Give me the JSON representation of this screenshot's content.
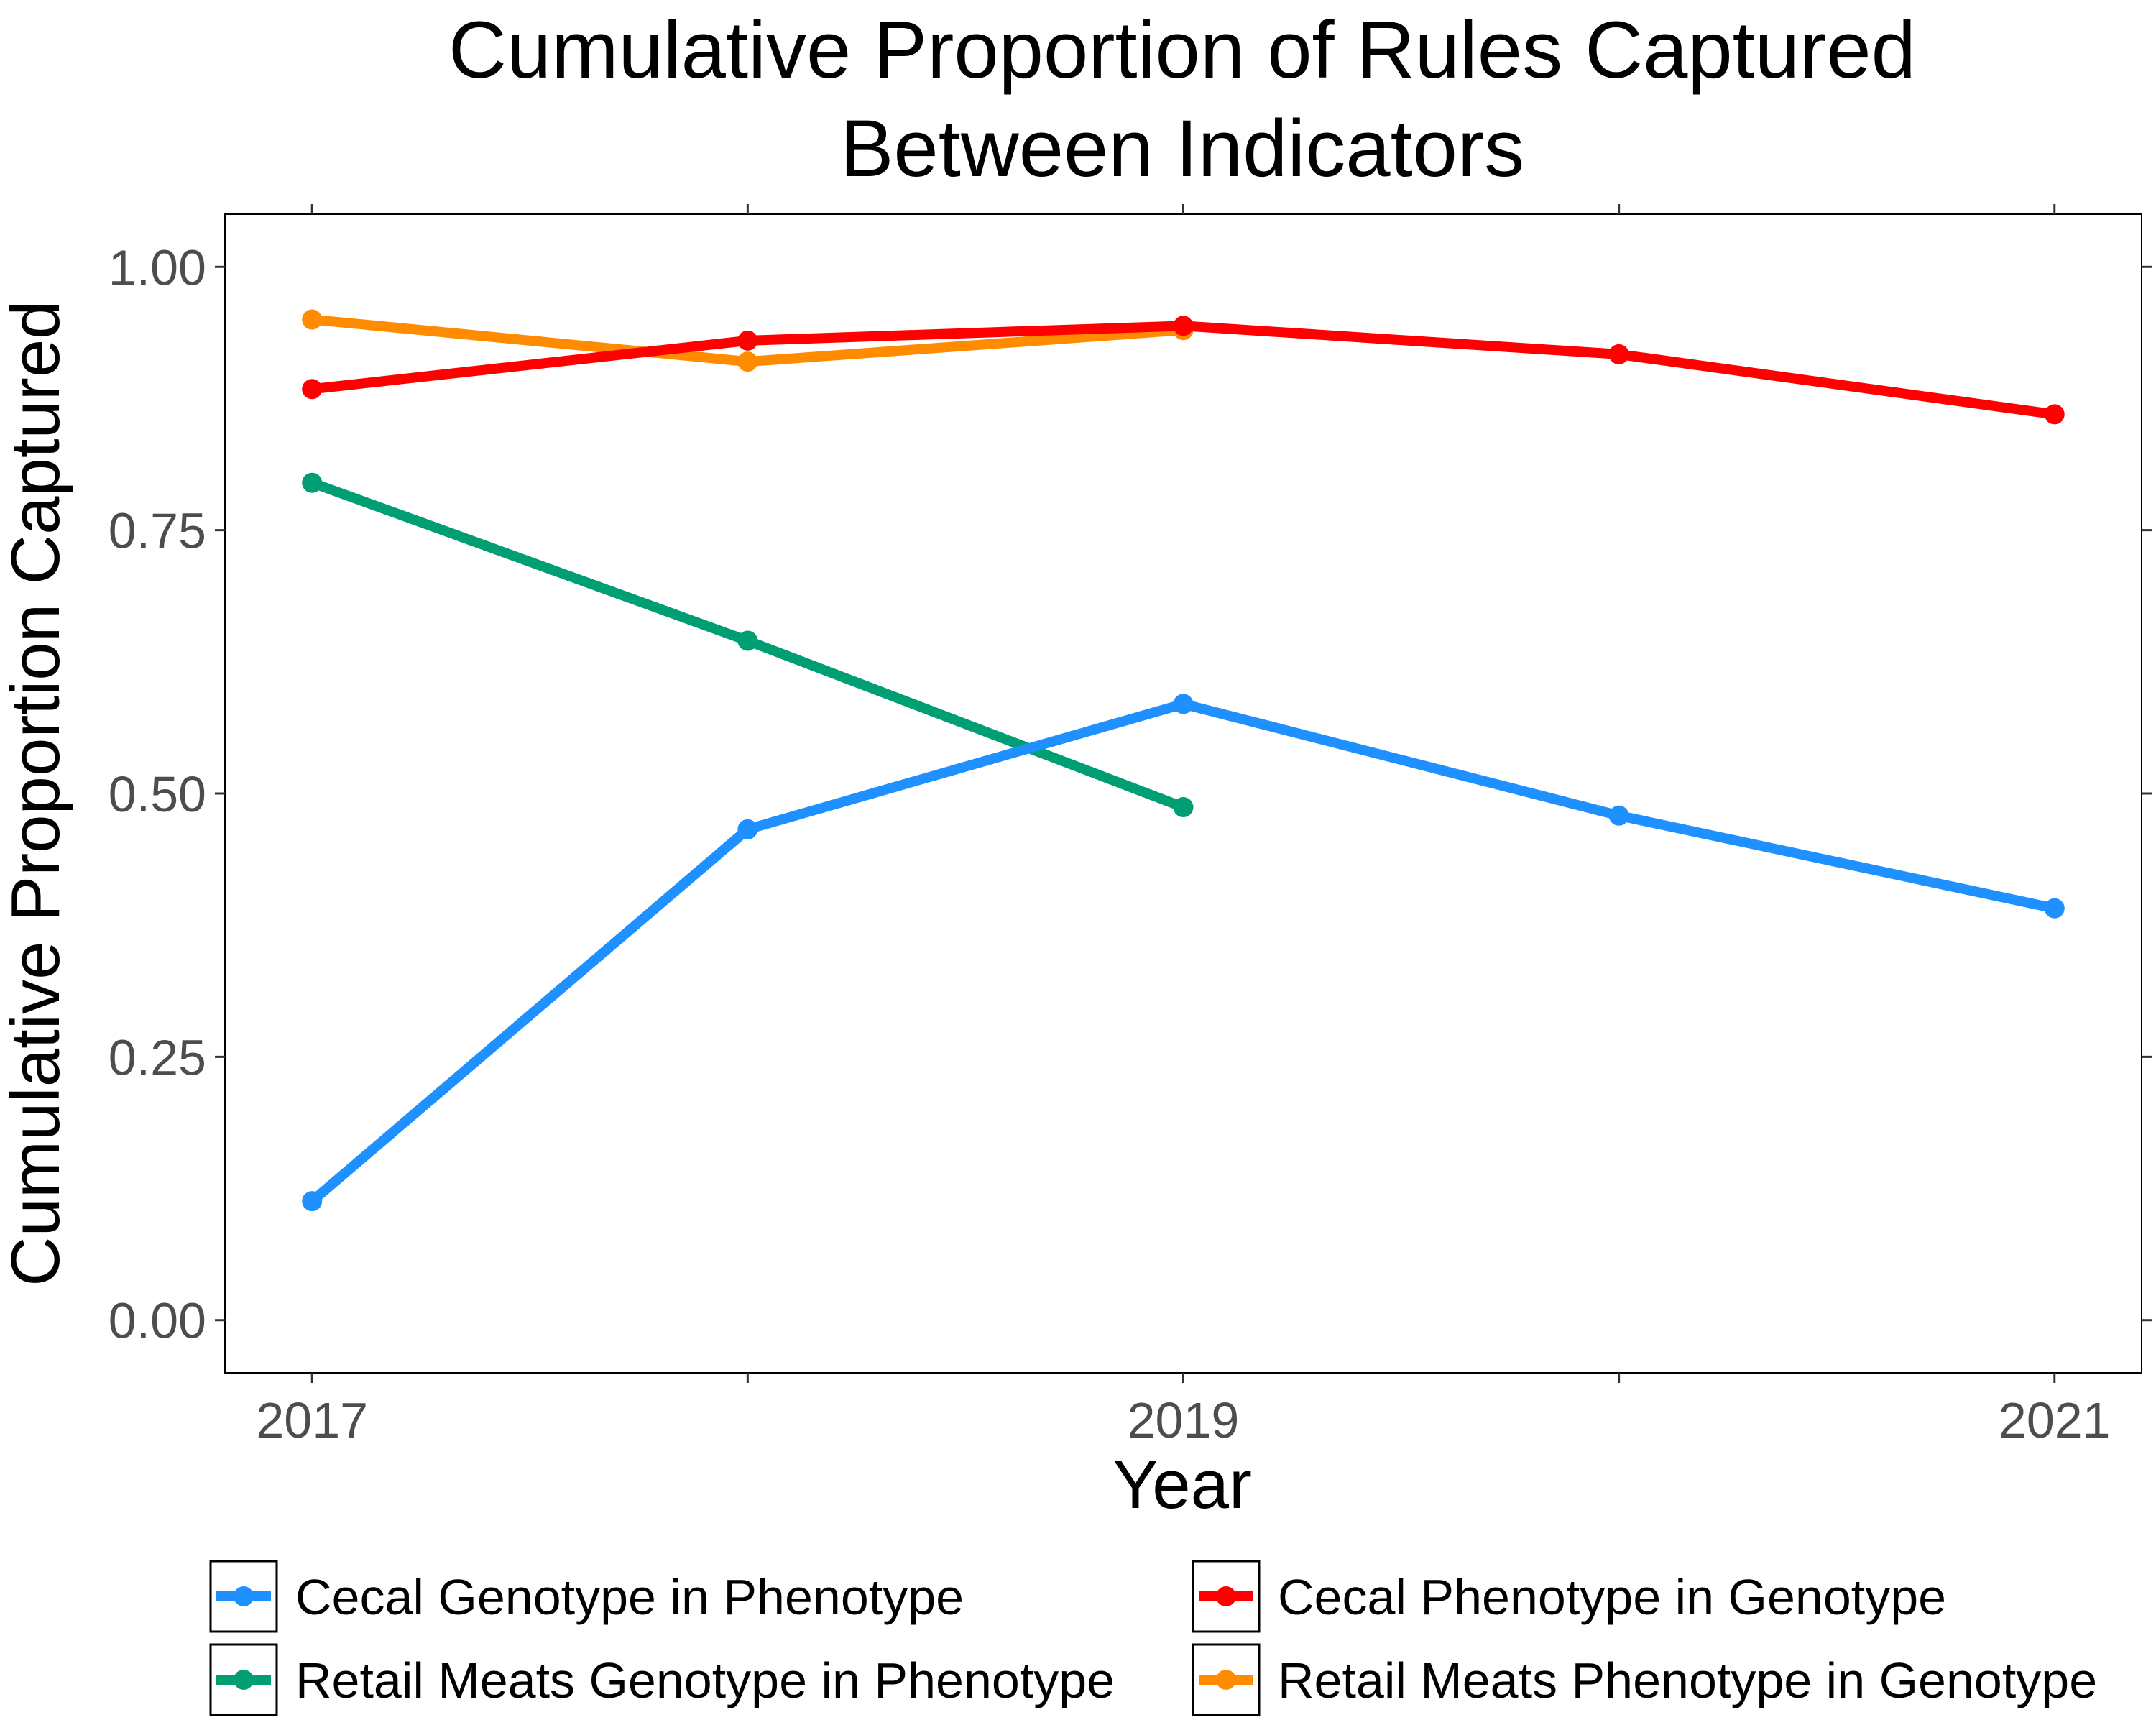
{
  "chart_data": {
    "type": "line",
    "title": [
      "Cumulative Proportion of Rules Captured",
      "Between Indicators"
    ],
    "xlabel": "Year",
    "ylabel": "Cumulative Proportion Captured",
    "xlim": [
      2016.8,
      2021.2
    ],
    "ylim": [
      -0.05,
      1.05
    ],
    "x_ticks": [
      2017,
      2019,
      2021
    ],
    "x_tick_labels": [
      "2017",
      "2019",
      "2021"
    ],
    "x_minor_ticks": [
      2018,
      2020
    ],
    "y_ticks": [
      0,
      0.25,
      0.5,
      0.75,
      1
    ],
    "y_tick_labels": [
      "0.00",
      "0.25",
      "0.50",
      "0.75",
      "1.00"
    ],
    "grid": false,
    "legend_position": "bottom",
    "series": [
      {
        "name": "Cecal Genotype in Phenotype",
        "color": "#1E90FF",
        "x": [
          2017,
          2018,
          2019,
          2020,
          2021
        ],
        "y": [
          0.113,
          0.466,
          0.585,
          0.479,
          0.391
        ]
      },
      {
        "name": "Cecal Phenotype in Genotype",
        "color": "#FF0000",
        "x": [
          2017,
          2018,
          2019,
          2020,
          2021
        ],
        "y": [
          0.884,
          0.93,
          0.944,
          0.917,
          0.86
        ]
      },
      {
        "name": "Retail Meats Genotype in Phenotype",
        "color": "#009E73",
        "x": [
          2017,
          2018,
          2019
        ],
        "y": [
          0.795,
          0.645,
          0.487
        ]
      },
      {
        "name": "Retail Meats Phenotype in Genotype",
        "color": "#FF8C00",
        "x": [
          2017,
          2018,
          2019
        ],
        "y": [
          0.95,
          0.91,
          0.94
        ]
      }
    ]
  }
}
